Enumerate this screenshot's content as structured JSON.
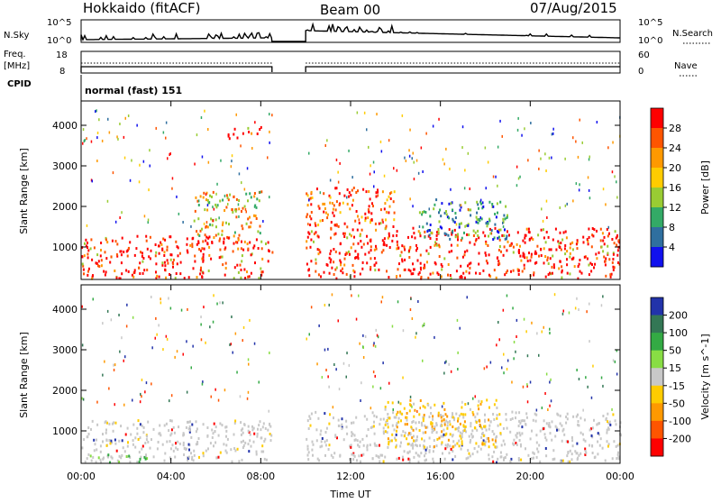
{
  "header": {
    "site": "Hokkaido (fitACF)",
    "beam": "Beam 00",
    "date": "07/Aug/2015"
  },
  "strip_panels": {
    "nsky_label": "N.Sky",
    "nsky_ticks": [
      "10^5",
      "10^0"
    ],
    "nsearch_label": "N.Search",
    "nsearch_ticks": [
      "10^5",
      "10^0"
    ],
    "freq_label_lines": [
      "Freq.",
      "[MHz]"
    ],
    "freq_ticks": [
      "18",
      "8"
    ],
    "nave_label": "Nave",
    "nave_ticks": [
      "60",
      "0"
    ],
    "cpid_label": "CPID",
    "cpid_value": "normal (fast) 151",
    "data_gap_hours": [
      8.5,
      10.0
    ]
  },
  "chart_data": [
    {
      "type": "heatmap",
      "panel": "power",
      "ylabel": "Slant Range [km]",
      "xlabel": "Time UT",
      "xlim": [
        0,
        24
      ],
      "ylim": [
        200,
        4600
      ],
      "x_ticks": [
        "00:00",
        "04:00",
        "08:00",
        "12:00",
        "16:00",
        "20:00",
        "00:00"
      ],
      "y_ticks": [
        "1000",
        "2000",
        "3000",
        "4000"
      ],
      "y_tick_values": [
        1000,
        2000,
        3000,
        4000
      ],
      "colorbar": {
        "label": "Power [dB]",
        "ticks": [
          "28",
          "24",
          "20",
          "16",
          "12",
          "8",
          "4"
        ],
        "colors": [
          "#ff0000",
          "#ff5500",
          "#ff9900",
          "#ffcc00",
          "#99cc33",
          "#33aa66",
          "#2f6f9f",
          "#1111ee"
        ]
      },
      "regions": [
        {
          "t0": 0.0,
          "t1": 8.5,
          "r0": 250,
          "r1": 1300,
          "level": "20-28 dB"
        },
        {
          "t0": 5.0,
          "t1": 8.0,
          "r0": 1300,
          "r1": 2400,
          "level": "12-24 dB"
        },
        {
          "t0": 10.0,
          "t1": 24.0,
          "r0": 250,
          "r1": 1500,
          "level": "20-28 dB"
        },
        {
          "t0": 10.0,
          "t1": 14.0,
          "r0": 1500,
          "r1": 2500,
          "level": "16-28 dB"
        },
        {
          "t0": 15.0,
          "t1": 19.0,
          "r0": 1200,
          "r1": 2200,
          "level": "8-20 dB"
        },
        {
          "t0": 6.5,
          "t1": 8.0,
          "r0": 3700,
          "r1": 4000,
          "level": "20-28 dB"
        }
      ]
    },
    {
      "type": "heatmap",
      "panel": "velocity",
      "ylabel": "Slant Range [km]",
      "xlabel": "Time UT",
      "xlim": [
        0,
        24
      ],
      "ylim": [
        200,
        4600
      ],
      "x_ticks": [
        "00:00",
        "04:00",
        "08:00",
        "12:00",
        "16:00",
        "20:00",
        "00:00"
      ],
      "y_ticks": [
        "1000",
        "2000",
        "3000",
        "4000"
      ],
      "y_tick_values": [
        1000,
        2000,
        3000,
        4000
      ],
      "colorbar": {
        "label": "Velocity [m s^-1]",
        "ticks": [
          "200",
          "100",
          "50",
          "15",
          "-15",
          "-50",
          "-100",
          "-200"
        ],
        "colors": [
          "#2233aa",
          "#337755",
          "#33aa44",
          "#88dd44",
          "#c8c8c8",
          "#ffcc00",
          "#ff9900",
          "#ff5500",
          "#ff0000"
        ]
      },
      "regions": [
        {
          "t0": 0.0,
          "t1": 8.5,
          "r0": 250,
          "r1": 1300,
          "level": "-15 to 15 m/s"
        },
        {
          "t0": 10.0,
          "t1": 24.0,
          "r0": 250,
          "r1": 1500,
          "level": "-15 to 15 m/s"
        },
        {
          "t0": 13.5,
          "t1": 18.5,
          "r0": 600,
          "r1": 1800,
          "level": "-50 to -100 m/s"
        },
        {
          "t0": 0.0,
          "t1": 3.0,
          "r0": 250,
          "r1": 450,
          "level": "15 to 50 m/s"
        }
      ]
    }
  ]
}
